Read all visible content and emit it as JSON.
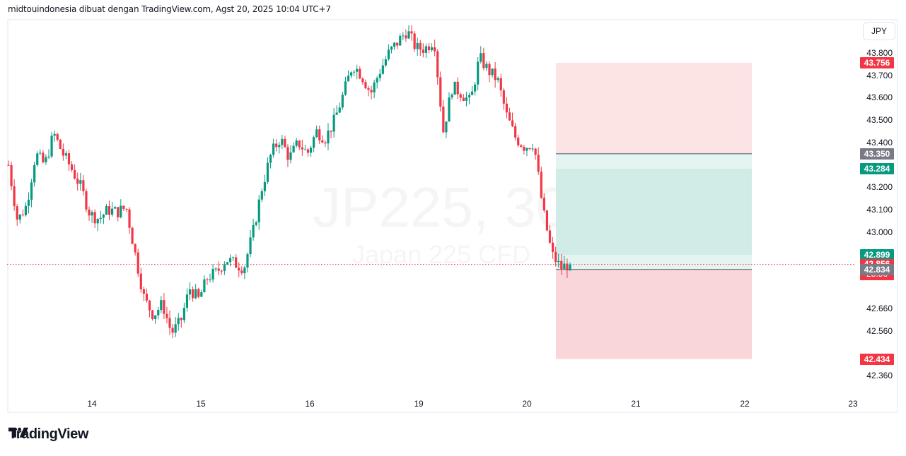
{
  "caption": "midtouindonesia dibuat dengan TradingView.com, Agst 20, 2025 10:04 UTC+7",
  "watermark": {
    "symbol": "JP225, 30",
    "description": "Japan 225 CFD"
  },
  "currency": "JPY",
  "brand": "TradingView",
  "colors": {
    "up": "#089981",
    "down": "#f23645",
    "stop_zone": "#fce4e5",
    "stop_zone_lower": "#f9d6d9",
    "target_zone": "#d1ece6",
    "target_zone_light": "#e4f4f1",
    "axis_gray": "#787b86",
    "border": "#f0f3fa"
  },
  "price_axis": {
    "ticks": [
      "43.800",
      "43.700",
      "43.600",
      "43.500",
      "43.400",
      "43.200",
      "43.100",
      "43.000",
      "42.660",
      "42.560",
      "42.360"
    ],
    "labels": [
      {
        "value": "43.756",
        "bg": "#f23645"
      },
      {
        "value": "43.350",
        "bg": "#787b86"
      },
      {
        "value": "43.284",
        "bg": "#089981"
      },
      {
        "value": "42.899",
        "bg": "#089981"
      },
      {
        "value": "42.856",
        "countdown": "25:56",
        "bg": "#f23645"
      },
      {
        "value": "42.834",
        "bg": "#787b86"
      },
      {
        "value": "42.434",
        "bg": "#f23645"
      }
    ]
  },
  "time_axis": {
    "ticks": [
      "14",
      "15",
      "16",
      "19",
      "20",
      "21",
      "22",
      "23"
    ]
  },
  "chart_data": {
    "type": "candlestick",
    "title": "JP225, 30",
    "subtitle": "Japan 225 CFD",
    "currency": "JPY",
    "ylim": [
      42.3,
      43.95
    ],
    "x_ticks": [
      "14",
      "15",
      "16",
      "19",
      "20",
      "21",
      "22",
      "23"
    ],
    "y_ticks": [
      43.8,
      43.7,
      43.6,
      43.5,
      43.4,
      43.2,
      43.1,
      43.0,
      42.66,
      42.56,
      42.36
    ],
    "last_price": 42.856,
    "bar_countdown": "25:56",
    "position_tool": {
      "type": "long/short risk-reward",
      "entry": 42.834,
      "upper_level": 43.35,
      "stop_upper": 43.756,
      "target_level": 43.284,
      "level_2": 42.899,
      "stop_lower": 42.434
    },
    "closes_approx": [
      43.3,
      43.05,
      43.12,
      43.35,
      43.3,
      43.44,
      43.35,
      43.28,
      43.2,
      43.08,
      43.06,
      43.1,
      43.09,
      43.11,
      42.9,
      42.7,
      42.63,
      42.68,
      42.55,
      42.6,
      42.75,
      42.7,
      42.8,
      42.82,
      42.88,
      42.86,
      42.84,
      43.0,
      43.2,
      43.35,
      43.42,
      43.33,
      43.4,
      43.35,
      43.45,
      43.42,
      43.5,
      43.62,
      43.75,
      43.7,
      43.62,
      43.72,
      43.8,
      43.85,
      43.9,
      43.82,
      43.82,
      43.86,
      43.45,
      43.65,
      43.62,
      43.58,
      43.78,
      43.72,
      43.68,
      43.52,
      43.42,
      43.38,
      43.4,
      43.1,
      42.9,
      42.84,
      42.86
    ]
  }
}
